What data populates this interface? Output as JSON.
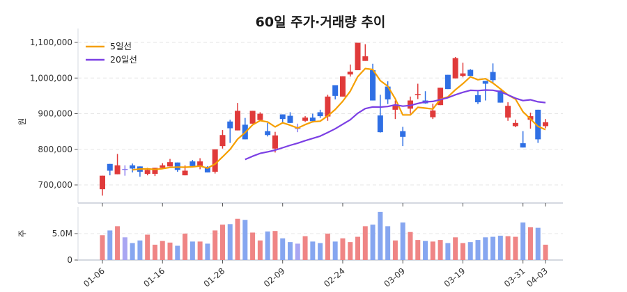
{
  "chart_data": {
    "type": "candlestick",
    "title": "60일 주가·거래량 추이",
    "price_panel": {
      "ylabel": "원",
      "ylim": [
        650000,
        1100000
      ],
      "yticks": [
        700000,
        800000,
        900000,
        1000000,
        1100000
      ],
      "ytick_labels": [
        "700,000",
        "800,000",
        "900,000",
        "1,000,000",
        "1,100,000"
      ],
      "grid": true,
      "legend_placement": "top-left",
      "legend": [
        {
          "name": "5일선",
          "color": "#f59f00",
          "window": 5
        },
        {
          "name": "20일선",
          "color": "#7b3fe4",
          "window": 20
        }
      ]
    },
    "volume_panel": {
      "ylabel": "주",
      "ylim": [
        0,
        10000000
      ],
      "yticks": [
        0,
        5000000
      ],
      "ytick_labels": [
        "0",
        "5.0M"
      ],
      "grid": true
    },
    "xtick_indices": [
      0,
      8,
      16,
      24,
      32,
      40,
      48,
      56,
      59
    ],
    "xtick_labels": [
      "01-06",
      "01-16",
      "01-28",
      "02-09",
      "02-24",
      "03-09",
      "03-19",
      "03-31",
      "04-03"
    ],
    "colors": {
      "up": "#e03a3a",
      "down": "#2f6fe4",
      "flat": "#8a7cf0",
      "vol_up": "#ef8585",
      "vol_down": "#86a6f0",
      "vol_flat": "#a9a6f2"
    },
    "ohlc": [
      [
        688000,
        726000,
        670000,
        726000
      ],
      [
        759000,
        759000,
        727000,
        740000
      ],
      [
        730000,
        787000,
        730000,
        755000
      ],
      [
        745000,
        755000,
        726000,
        745000
      ],
      [
        755000,
        760000,
        735000,
        746000
      ],
      [
        752000,
        752000,
        723000,
        737000
      ],
      [
        731000,
        748000,
        727000,
        742000
      ],
      [
        731000,
        748000,
        725000,
        748000
      ],
      [
        748000,
        761000,
        748000,
        755000
      ],
      [
        752000,
        773000,
        752000,
        764000
      ],
      [
        763000,
        763000,
        737000,
        742000
      ],
      [
        727000,
        755000,
        727000,
        740000
      ],
      [
        766000,
        770000,
        753000,
        753000
      ],
      [
        753000,
        775000,
        744000,
        766000
      ],
      [
        751000,
        753000,
        735000,
        735000
      ],
      [
        737000,
        800000,
        732000,
        800000
      ],
      [
        809000,
        854000,
        802000,
        840000
      ],
      [
        878000,
        883000,
        818000,
        859000
      ],
      [
        853000,
        930000,
        853000,
        908000
      ],
      [
        869000,
        888000,
        828000,
        828000
      ],
      [
        872000,
        908000,
        872000,
        908000
      ],
      [
        882000,
        904000,
        882000,
        900000
      ],
      [
        851000,
        874000,
        836000,
        840000
      ],
      [
        802000,
        849000,
        791000,
        839000
      ],
      [
        898000,
        898000,
        875000,
        885000
      ],
      [
        894000,
        904000,
        874000,
        874000
      ],
      [
        860000,
        872000,
        848000,
        860000
      ],
      [
        880000,
        893000,
        877000,
        889000
      ],
      [
        889000,
        900000,
        875000,
        879000
      ],
      [
        904000,
        911000,
        888000,
        893000
      ],
      [
        892000,
        953000,
        880000,
        948000
      ],
      [
        980000,
        980000,
        940000,
        950000
      ],
      [
        948000,
        1005000,
        948000,
        1005000
      ],
      [
        1010000,
        1038000,
        1004000,
        1018000
      ],
      [
        1022000,
        1099000,
        1022000,
        1099000
      ],
      [
        1048000,
        1095000,
        1048000,
        1061000
      ],
      [
        1022000,
        1040000,
        937000,
        937000
      ],
      [
        895000,
        953000,
        847000,
        848000
      ],
      [
        976000,
        991000,
        927000,
        940000
      ],
      [
        911000,
        937000,
        885000,
        922000
      ],
      [
        851000,
        863000,
        809000,
        835000
      ],
      [
        914000,
        948000,
        900000,
        937000
      ],
      [
        952000,
        984000,
        941000,
        955000
      ],
      [
        937000,
        963000,
        928000,
        929000
      ],
      [
        890000,
        928000,
        885000,
        909000
      ],
      [
        924000,
        973000,
        924000,
        973000
      ],
      [
        1009000,
        1009000,
        969000,
        969000
      ],
      [
        999000,
        1059000,
        999000,
        1056000
      ],
      [
        1006000,
        1043000,
        1002000,
        1013000
      ],
      [
        1023000,
        1025000,
        1006000,
        1006000
      ],
      [
        952000,
        963000,
        927000,
        932000
      ],
      [
        992000,
        992000,
        937000,
        984000
      ],
      [
        1017000,
        1041000,
        987000,
        994000
      ],
      [
        965000,
        965000,
        931000,
        931000
      ],
      [
        889000,
        932000,
        880000,
        922000
      ],
      [
        865000,
        883000,
        862000,
        874000
      ],
      [
        817000,
        851000,
        805000,
        805000
      ],
      [
        883000,
        903000,
        858000,
        893000
      ],
      [
        911000,
        911000,
        818000,
        828000
      ],
      [
        865000,
        885000,
        859000,
        876000
      ]
    ],
    "volume": [
      4.7,
      5.6,
      6.4,
      4.3,
      3.2,
      3.7,
      4.8,
      2.9,
      3.6,
      3.3,
      2.7,
      5.0,
      3.5,
      3.5,
      3.1,
      5.6,
      6.7,
      6.8,
      7.8,
      7.6,
      5.2,
      3.7,
      5.4,
      5.5,
      4.1,
      3.4,
      3.1,
      4.5,
      3.5,
      3.2,
      5.0,
      3.5,
      4.1,
      3.4,
      4.4,
      6.4,
      6.7,
      9.1,
      6.4,
      3.7,
      7.1,
      5.3,
      3.8,
      3.6,
      3.5,
      3.8,
      3.2,
      4.3,
      3.2,
      3.4,
      3.8,
      4.3,
      4.4,
      4.6,
      4.5,
      4.4,
      7.1,
      6.2,
      6.1,
      2.9
    ],
    "volume_unit": 1000000
  }
}
